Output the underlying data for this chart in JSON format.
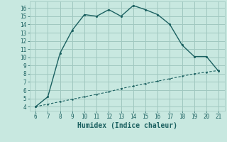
{
  "title": "",
  "xlabel": "Humidex (Indice chaleur)",
  "ylabel": "",
  "bg_color": "#c8e8e0",
  "grid_color": "#a0c8c0",
  "line_color": "#1a6060",
  "xlim": [
    5.5,
    21.5
  ],
  "ylim": [
    3.5,
    16.8
  ],
  "xticks": [
    6,
    7,
    8,
    9,
    10,
    11,
    12,
    13,
    14,
    15,
    16,
    17,
    18,
    19,
    20,
    21
  ],
  "yticks": [
    4,
    5,
    6,
    7,
    8,
    9,
    10,
    11,
    12,
    13,
    14,
    15,
    16
  ],
  "curve1_x": [
    6,
    7,
    8,
    9,
    10,
    11,
    12,
    13,
    14,
    15,
    16,
    17,
    18,
    19,
    20,
    21
  ],
  "curve1_y": [
    4.0,
    5.2,
    10.5,
    13.3,
    15.2,
    15.0,
    15.8,
    15.0,
    16.3,
    15.8,
    15.2,
    14.0,
    11.5,
    10.1,
    10.1,
    8.3
  ],
  "curve2_x": [
    6,
    7,
    8,
    9,
    10,
    11,
    12,
    13,
    14,
    15,
    16,
    17,
    18,
    19,
    20,
    21
  ],
  "curve2_y": [
    4.0,
    4.3,
    4.6,
    4.9,
    5.2,
    5.5,
    5.8,
    6.2,
    6.5,
    6.8,
    7.1,
    7.4,
    7.7,
    8.0,
    8.2,
    8.4
  ]
}
